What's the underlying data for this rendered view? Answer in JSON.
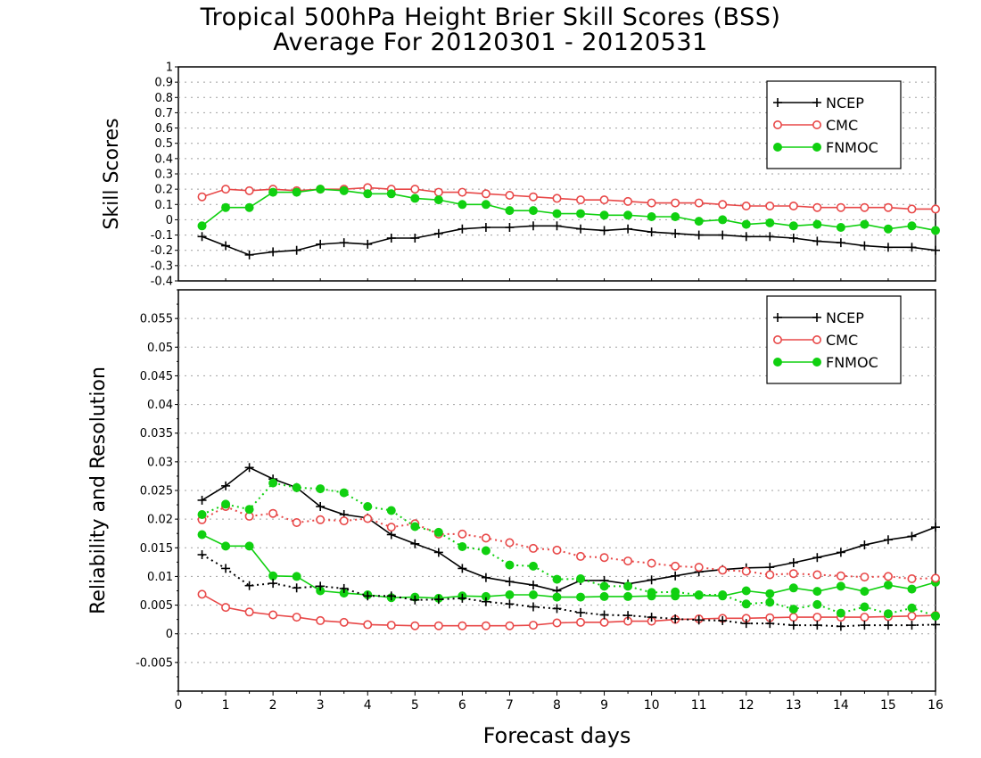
{
  "title_line1": "Tropical 500hPa Height Brier Skill Scores (BSS)",
  "title_line2": "Average For 20120301 - 20120531",
  "chart_data": [
    {
      "type": "line",
      "panel": "top",
      "ylabel": "Skill Scores",
      "xlabel": "",
      "xlim": [
        0,
        16
      ],
      "ylim": [
        -0.4,
        1
      ],
      "yticks": [
        "-0.4",
        "-0.3",
        "-0.2",
        "-0.1",
        "0",
        "0.1",
        "0.2",
        "0.3",
        "0.4",
        "0.5",
        "0.6",
        "0.7",
        "0.8",
        "0.9",
        "1"
      ],
      "grid": true,
      "legend_position": "top-right",
      "x": [
        0.5,
        1,
        1.5,
        2,
        2.5,
        3,
        3.5,
        4,
        4.5,
        5,
        5.5,
        6,
        6.5,
        7,
        7.5,
        8,
        8.5,
        9,
        9.5,
        10,
        10.5,
        11,
        11.5,
        12,
        12.5,
        13,
        13.5,
        14,
        14.5,
        15,
        15.5,
        16
      ],
      "series": [
        {
          "name": "NCEP",
          "color": "#000000",
          "marker": "plus",
          "line": "solid",
          "values": [
            -0.11,
            -0.17,
            -0.23,
            -0.21,
            -0.2,
            -0.16,
            -0.15,
            -0.16,
            -0.12,
            -0.12,
            -0.09,
            -0.06,
            -0.05,
            -0.05,
            -0.04,
            -0.04,
            -0.06,
            -0.07,
            -0.06,
            -0.08,
            -0.09,
            -0.1,
            -0.1,
            -0.11,
            -0.11,
            -0.12,
            -0.14,
            -0.15,
            -0.17,
            -0.18,
            -0.18,
            -0.2
          ]
        },
        {
          "name": "CMC",
          "color": "#e84848",
          "marker": "open-circle",
          "line": "solid",
          "values": [
            0.15,
            0.2,
            0.19,
            0.2,
            0.19,
            0.2,
            0.2,
            0.21,
            0.2,
            0.2,
            0.18,
            0.18,
            0.17,
            0.16,
            0.15,
            0.14,
            0.13,
            0.13,
            0.12,
            0.11,
            0.11,
            0.11,
            0.1,
            0.09,
            0.09,
            0.09,
            0.08,
            0.08,
            0.08,
            0.08,
            0.07,
            0.07
          ]
        },
        {
          "name": "FNMOC",
          "color": "#10d010",
          "marker": "filled-circle",
          "line": "solid",
          "values": [
            -0.04,
            0.08,
            0.08,
            0.18,
            0.18,
            0.2,
            0.19,
            0.17,
            0.17,
            0.14,
            0.13,
            0.1,
            0.1,
            0.06,
            0.06,
            0.04,
            0.04,
            0.03,
            0.03,
            0.02,
            0.02,
            -0.01,
            0,
            -0.03,
            -0.02,
            -0.04,
            -0.03,
            -0.05,
            -0.03,
            -0.06,
            -0.04,
            -0.07
          ]
        }
      ]
    },
    {
      "type": "line",
      "panel": "bottom",
      "ylabel": "Reliability and Resolution",
      "xlabel": "Forecast days",
      "xlim": [
        0,
        16
      ],
      "ylim": [
        -0.01,
        0.06
      ],
      "xticks": [
        "0",
        "1",
        "2",
        "3",
        "4",
        "5",
        "6",
        "7",
        "8",
        "9",
        "10",
        "11",
        "12",
        "13",
        "14",
        "15",
        "16"
      ],
      "yticks": [
        "-0.005",
        "0",
        "0.005",
        "0.01",
        "0.015",
        "0.02",
        "0.025",
        "0.03",
        "0.035",
        "0.04",
        "0.045",
        "0.05",
        "0.055"
      ],
      "grid": true,
      "legend_position": "top-right",
      "x": [
        0.5,
        1,
        1.5,
        2,
        2.5,
        3,
        3.5,
        4,
        4.5,
        5,
        5.5,
        6,
        6.5,
        7,
        7.5,
        8,
        8.5,
        9,
        9.5,
        10,
        10.5,
        11,
        11.5,
        12,
        12.5,
        13,
        13.5,
        14,
        14.5,
        15,
        15.5,
        16
      ],
      "series": [
        {
          "name": "NCEP",
          "color": "#000000",
          "marker": "plus",
          "line": "solid",
          "values": [
            0.0233,
            0.0258,
            0.029,
            0.027,
            0.0255,
            0.0222,
            0.0208,
            0.0202,
            0.0173,
            0.0157,
            0.0142,
            0.0114,
            0.0098,
            0.0091,
            0.0085,
            0.0075,
            0.0093,
            0.0093,
            0.0087,
            0.0094,
            0.0101,
            0.0108,
            0.0112,
            0.0115,
            0.0116,
            0.0124,
            0.0133,
            0.0142,
            0.0155,
            0.0164,
            0.017,
            0.0186
          ]
        },
        {
          "name": "CMC",
          "color": "#e84848",
          "marker": "open-circle",
          "line": "solid",
          "values": [
            0.0069,
            0.0046,
            0.0038,
            0.0033,
            0.0029,
            0.0023,
            0.002,
            0.0016,
            0.0015,
            0.0014,
            0.0014,
            0.0014,
            0.0014,
            0.0014,
            0.0015,
            0.0019,
            0.002,
            0.002,
            0.0022,
            0.0022,
            0.0025,
            0.0026,
            0.0027,
            0.0027,
            0.0028,
            0.0029,
            0.0029,
            0.0029,
            0.0029,
            0.003,
            0.0031,
            0.0032
          ]
        },
        {
          "name": "FNMOC",
          "color": "#10d010",
          "marker": "filled-circle",
          "line": "solid",
          "values": [
            0.0173,
            0.0153,
            0.0153,
            0.0101,
            0.01,
            0.0075,
            0.0071,
            0.0068,
            0.0063,
            0.0064,
            0.0062,
            0.0066,
            0.0065,
            0.0068,
            0.0068,
            0.0064,
            0.0064,
            0.0065,
            0.0065,
            0.0066,
            0.0066,
            0.0067,
            0.0066,
            0.0075,
            0.007,
            0.008,
            0.0074,
            0.0083,
            0.0074,
            0.0085,
            0.0078,
            0.009
          ]
        },
        {
          "name": "",
          "color": "#000000",
          "marker": "plus",
          "line": "dotted",
          "values": [
            0.0138,
            0.0114,
            0.0084,
            0.0088,
            0.008,
            0.0083,
            0.0079,
            0.0066,
            0.0066,
            0.0059,
            0.006,
            0.0062,
            0.0056,
            0.0052,
            0.0047,
            0.0044,
            0.0037,
            0.0033,
            0.0032,
            0.0029,
            0.0026,
            0.0024,
            0.0023,
            0.0018,
            0.0018,
            0.0015,
            0.0015,
            0.0013,
            0.0015,
            0.0015,
            0.0015,
            0.0016
          ]
        },
        {
          "name": "",
          "color": "#e84848",
          "marker": "open-circle",
          "line": "dotted",
          "values": [
            0.0199,
            0.0222,
            0.0205,
            0.021,
            0.0194,
            0.0199,
            0.0197,
            0.0201,
            0.0186,
            0.0192,
            0.0174,
            0.0174,
            0.0167,
            0.0159,
            0.0149,
            0.0146,
            0.0135,
            0.0133,
            0.0127,
            0.0123,
            0.0118,
            0.0116,
            0.0111,
            0.0109,
            0.0103,
            0.0105,
            0.0103,
            0.0101,
            0.0099,
            0.01,
            0.0096,
            0.0097
          ]
        },
        {
          "name": "",
          "color": "#10d010",
          "marker": "filled-circle",
          "line": "dotted",
          "values": [
            0.0208,
            0.0226,
            0.0217,
            0.0263,
            0.0255,
            0.0253,
            0.0246,
            0.0222,
            0.0215,
            0.0187,
            0.0177,
            0.0152,
            0.0145,
            0.012,
            0.0118,
            0.0095,
            0.0096,
            0.0083,
            0.0083,
            0.0072,
            0.0073,
            0.0068,
            0.0068,
            0.0052,
            0.0055,
            0.0043,
            0.0051,
            0.0036,
            0.0047,
            0.0035,
            0.0045,
            0.0031
          ]
        }
      ]
    }
  ]
}
